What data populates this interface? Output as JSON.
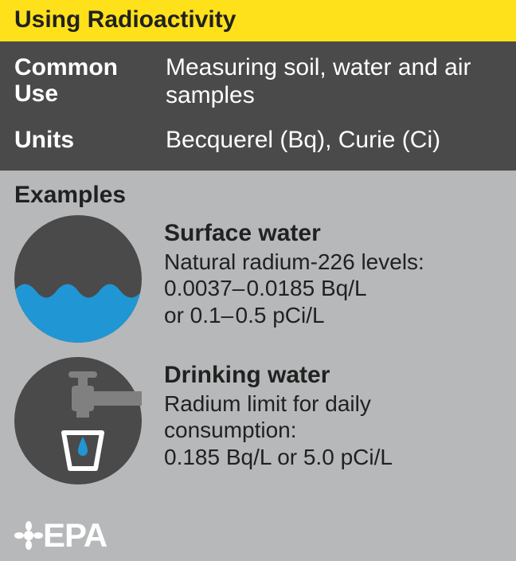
{
  "title": "Using Radioactivity",
  "colors": {
    "title_bg": "#fee11a",
    "title_text": "#212121",
    "dark_bg": "#4a4a4a",
    "dark_text": "#ffffff",
    "body_bg": "#b7b8ba",
    "body_text": "#212121",
    "icon_bg": "#4a4a4a",
    "water_blue": "#2196d4",
    "tap_gray": "#808080",
    "cup_white": "#ffffff",
    "logo_white": "#ffffff"
  },
  "info": {
    "common_use_label": "Common Use",
    "common_use_value": "Measuring soil, water and air samples",
    "units_label": "Units",
    "units_value": "Becquerel (Bq), Curie (Ci)"
  },
  "examples_heading": "Examples",
  "examples": [
    {
      "title": "Surface water",
      "desc": "Natural radium-226 levels:\n0.0037– 0.0185 Bq/L\nor 0.1– 0.5 pCi/L",
      "icon": "surface-water"
    },
    {
      "title": "Drinking water",
      "desc": "Radium limit for daily consumption:\n0.185 Bq/L or 5.0 pCi/L",
      "icon": "drinking-water"
    }
  ],
  "logo_text": "EPA"
}
